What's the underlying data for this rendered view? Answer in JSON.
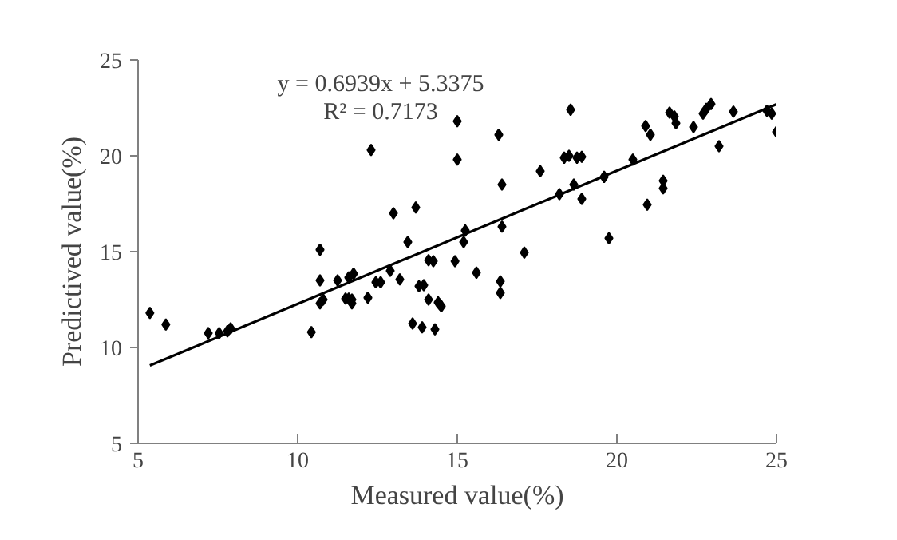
{
  "chart_data": {
    "type": "scatter",
    "xlabel": "Measured value(%)",
    "ylabel": "Predictived value(%)",
    "grid": false,
    "xlim": [
      5,
      25
    ],
    "xticks": [
      5,
      10,
      15,
      20,
      25
    ],
    "ylim": [
      5,
      25
    ],
    "yticks": [
      5,
      10,
      15,
      20,
      25
    ],
    "annotations": [
      "y = 0.6939x + 5.3375",
      "R² = 0.7173"
    ],
    "series": [
      {
        "marker": "diamond",
        "color": "#000000",
        "x": [
          5.37,
          5.87,
          7.2,
          7.54,
          7.8,
          7.9,
          10.43,
          10.7,
          10.7,
          10.7,
          10.8,
          11.25,
          11.5,
          11.6,
          11.6,
          11.7,
          11.7,
          11.75,
          12.2,
          12.3,
          12.45,
          12.6,
          12.9,
          13.0,
          13.2,
          13.45,
          13.6,
          13.7,
          13.8,
          13.9,
          13.95,
          14.1,
          14.1,
          14.25,
          14.3,
          14.4,
          14.45,
          14.5,
          14.93,
          15.0,
          15.0,
          15.2,
          15.25,
          15.6,
          16.3,
          16.35,
          16.35,
          16.4,
          16.4,
          17.1,
          17.6,
          18.2,
          18.35,
          18.5,
          18.55,
          18.65,
          18.75,
          18.9,
          18.9,
          19.6,
          19.75,
          20.5,
          20.9,
          20.95,
          21.05,
          21.45,
          21.45,
          21.65,
          21.8,
          21.85,
          22.4,
          22.7,
          22.8,
          22.95,
          23.2,
          23.65,
          24.7,
          24.85,
          25.0
        ],
        "values": [
          11.8,
          11.2,
          10.75,
          10.75,
          10.85,
          11.0,
          10.8,
          15.1,
          13.5,
          12.3,
          12.5,
          13.5,
          12.55,
          12.55,
          13.65,
          12.5,
          12.3,
          13.85,
          12.6,
          20.3,
          13.4,
          13.4,
          14.0,
          17.0,
          13.55,
          15.5,
          11.25,
          17.3,
          13.2,
          11.05,
          13.25,
          12.5,
          14.55,
          14.5,
          10.95,
          12.35,
          12.25,
          12.15,
          14.5,
          21.8,
          19.8,
          15.5,
          16.1,
          13.9,
          21.1,
          13.45,
          12.85,
          16.3,
          18.5,
          14.95,
          19.2,
          18.0,
          19.9,
          20.0,
          22.4,
          18.5,
          19.9,
          19.95,
          17.75,
          18.9,
          15.7,
          19.8,
          21.55,
          17.45,
          21.1,
          18.7,
          18.3,
          22.25,
          22.05,
          21.7,
          21.5,
          22.2,
          22.45,
          22.7,
          20.5,
          22.3,
          22.35,
          22.2,
          21.25
        ]
      },
      {
        "type": "line",
        "color": "#000000",
        "x": [
          5.37,
          25.0
        ],
        "values": [
          9.06,
          22.69
        ]
      }
    ]
  }
}
